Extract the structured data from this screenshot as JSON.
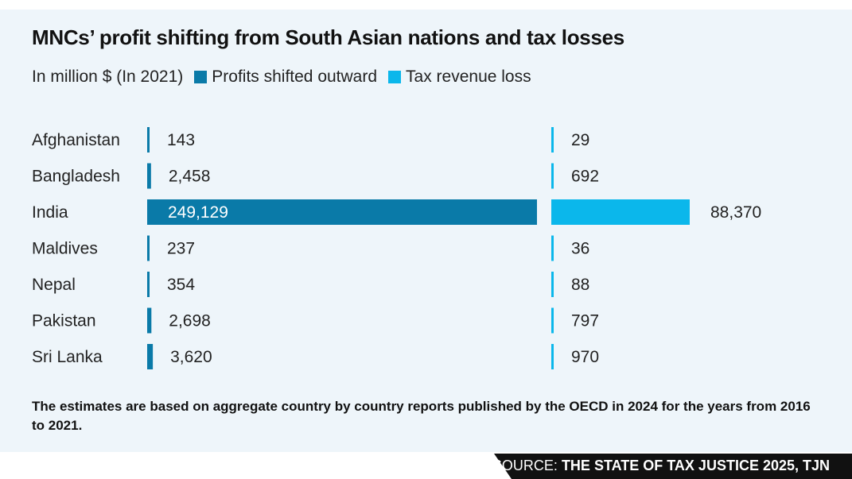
{
  "title": "MNCs’ profit shifting from South Asian nations and tax losses",
  "legend": {
    "unit": "In million $ (In 2021)",
    "items": [
      "Profits shifted outward",
      "Tax revenue loss"
    ]
  },
  "colors": {
    "profits": "#0a7aa8",
    "tax": "#0bb7eb",
    "background": "#eef5fa"
  },
  "chart_data": {
    "type": "bar",
    "orientation": "horizontal",
    "title": "MNCs’ profit shifting from South Asian nations and tax losses",
    "unit": "In million $ (In 2021)",
    "categories": [
      "Afghanistan",
      "Bangladesh",
      "India",
      "Maldives",
      "Nepal",
      "Pakistan",
      "Sri Lanka"
    ],
    "series": [
      {
        "name": "Profits shifted outward",
        "values": [
          143,
          2458,
          249129,
          237,
          354,
          2698,
          3620
        ],
        "labels": [
          "143",
          "2,458",
          "249,129",
          "237",
          "354",
          "2,698",
          "3,620"
        ]
      },
      {
        "name": "Tax revenue loss",
        "values": [
          29,
          692,
          88370,
          36,
          88,
          797,
          970
        ],
        "labels": [
          "29",
          "692",
          "88,370",
          "36",
          "88",
          "797",
          "970"
        ]
      }
    ]
  },
  "footnote": "The estimates are based on aggregate country by country reports published by the OECD in 2024 for the years from 2016 to 2021.",
  "source": {
    "prefix": "SOURCE:",
    "name": "THE STATE OF TAX JUSTICE 2025, TJN"
  }
}
